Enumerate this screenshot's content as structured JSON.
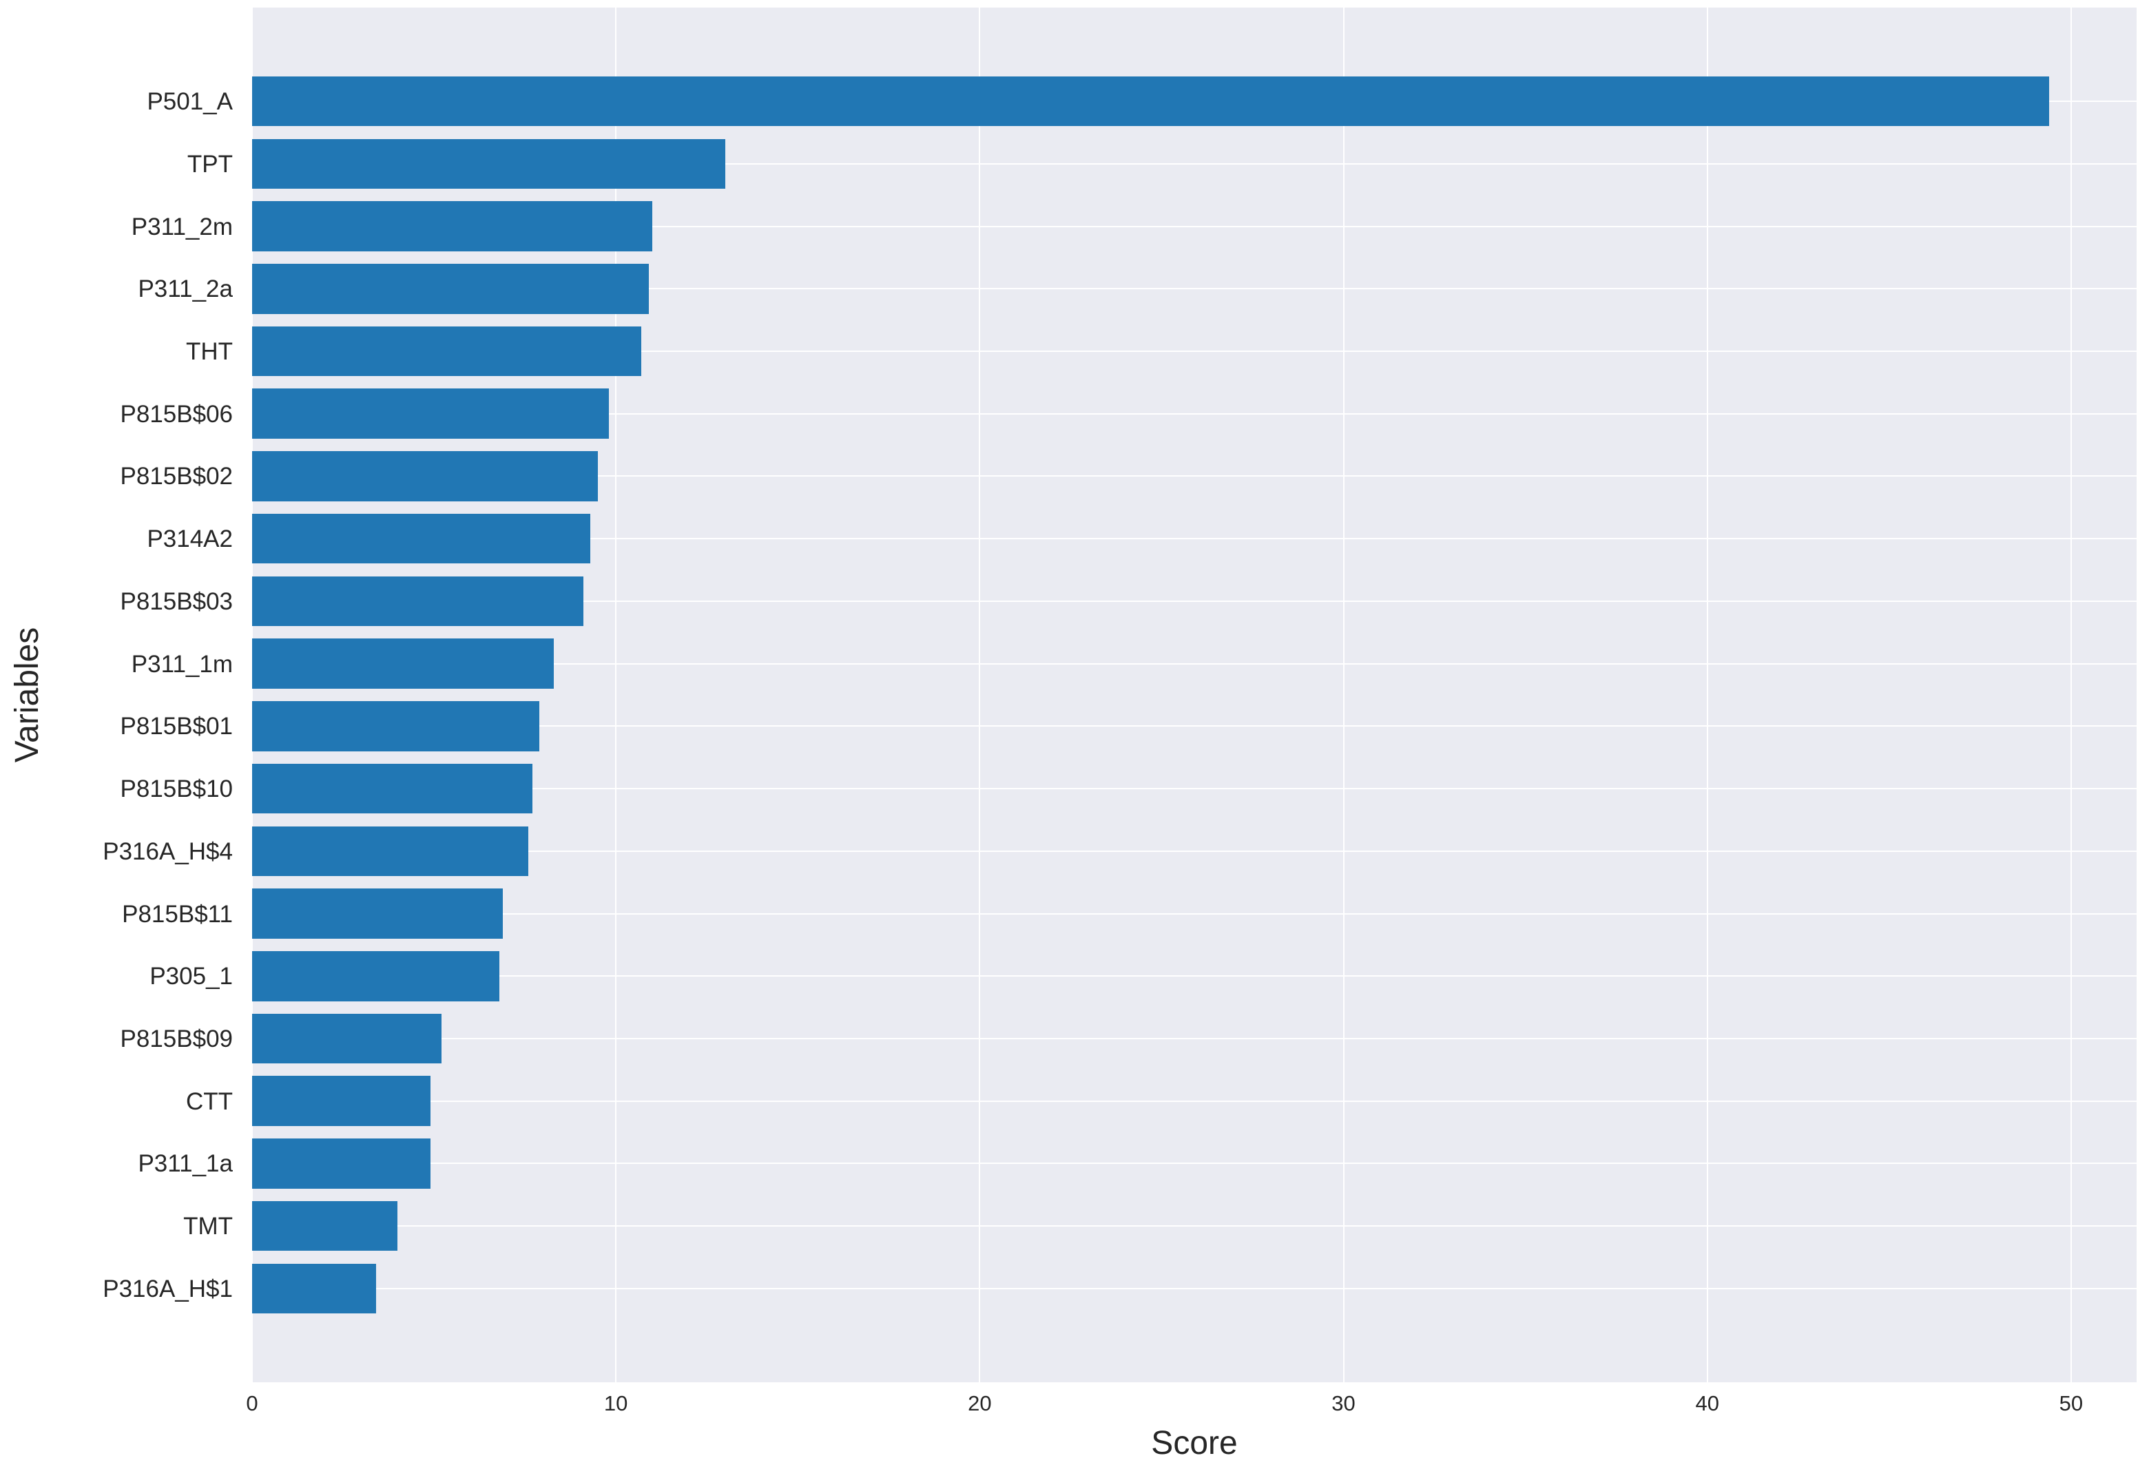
{
  "chart_data": {
    "type": "bar",
    "orientation": "horizontal",
    "title": "",
    "xlabel": "Score",
    "ylabel": "Variables",
    "categories": [
      "P501_A",
      "TPT",
      "P311_2m",
      "P311_2a",
      "THT",
      "P815B$06",
      "P815B$02",
      "P314A2",
      "P815B$03",
      "P311_1m",
      "P815B$01",
      "P815B$10",
      "P316A_H$4",
      "P815B$11",
      "P305_1",
      "P815B$09",
      "CTT",
      "P311_1a",
      "TMT",
      "P316A_H$1"
    ],
    "values": [
      49.4,
      13.0,
      11.0,
      10.9,
      10.7,
      9.8,
      9.5,
      9.3,
      9.1,
      8.3,
      7.9,
      7.7,
      7.6,
      6.9,
      6.8,
      5.2,
      4.9,
      4.9,
      4.0,
      3.4
    ],
    "xticks": [
      0,
      10,
      20,
      30,
      40,
      50
    ],
    "xlim": [
      0,
      51.8
    ],
    "grid": "on",
    "legend": "none",
    "bar_color": "#2177b4",
    "plot_bg_color": "#eaebf2",
    "grid_color": "#ffffff",
    "text_color": "#262626"
  }
}
